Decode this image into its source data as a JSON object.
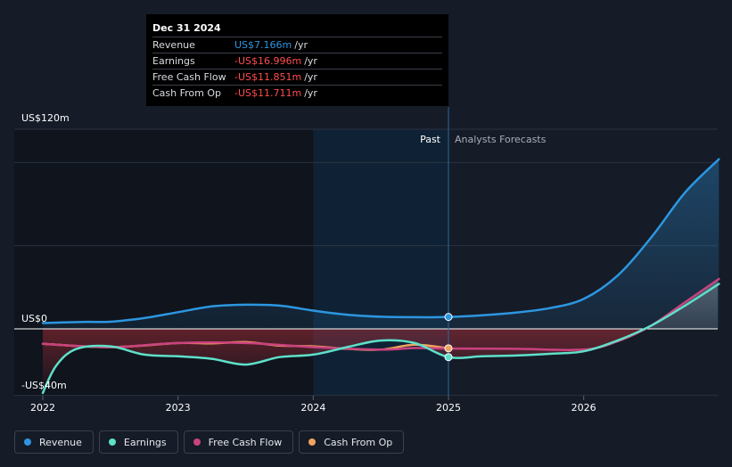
{
  "tooltip": {
    "date": "Dec 31 2024",
    "rows": [
      {
        "label": "Revenue",
        "value": "US$7.166m",
        "unit": "/yr",
        "color": "#2d96e0"
      },
      {
        "label": "Earnings",
        "value": "-US$16.996m",
        "unit": "/yr",
        "color": "#ff4d4d"
      },
      {
        "label": "Free Cash Flow",
        "value": "-US$11.851m",
        "unit": "/yr",
        "color": "#ff4d4d"
      },
      {
        "label": "Cash From Op",
        "value": "-US$11.711m",
        "unit": "/yr",
        "color": "#ff4d4d"
      }
    ]
  },
  "legend": [
    {
      "label": "Revenue",
      "color": "#2d96e0"
    },
    {
      "label": "Earnings",
      "color": "#5ee0c9"
    },
    {
      "label": "Free Cash Flow",
      "color": "#c9427f"
    },
    {
      "label": "Cash From Op",
      "color": "#f0a35e"
    }
  ],
  "chart_data": {
    "type": "line",
    "title": "",
    "y_top_label": "US$120m",
    "y_zero_label": "US$0",
    "y_bottom_label": "-US$40m",
    "past_label": "Past",
    "forecast_label": "Analysts Forecasts",
    "x_ticks": [
      "2022",
      "2023",
      "2024",
      "2025",
      "2026"
    ],
    "x_tick_values": [
      2022.0,
      2023.0,
      2024.0,
      2025.0,
      2026.0
    ],
    "x_range": [
      2021.8,
      2027.0
    ],
    "y_range": [
      -40,
      120
    ],
    "past_divider": 2025.0,
    "past_shade_start": 2024.0,
    "series": [
      {
        "name": "Revenue",
        "color": "#2d96e0",
        "x": [
          2022.0,
          2022.3,
          2022.5,
          2022.75,
          2023.0,
          2023.25,
          2023.5,
          2023.75,
          2024.0,
          2024.25,
          2024.5,
          2024.75,
          2025.0,
          2025.25,
          2025.5,
          2025.75,
          2026.0,
          2026.25,
          2026.5,
          2026.75,
          2027.0
        ],
        "y": [
          3.5,
          4.2,
          4.3,
          6.5,
          10.0,
          13.5,
          14.5,
          14.0,
          11.0,
          8.5,
          7.3,
          7.0,
          7.166,
          8.2,
          9.8,
          12.5,
          18.0,
          32.0,
          55.0,
          82.0,
          102.0
        ]
      },
      {
        "name": "Earnings",
        "color": "#5ee0c9",
        "x": [
          2022.0,
          2022.1,
          2022.25,
          2022.5,
          2022.75,
          2023.0,
          2023.25,
          2023.5,
          2023.75,
          2024.0,
          2024.25,
          2024.5,
          2024.75,
          2025.0,
          2025.25,
          2025.5,
          2025.75,
          2026.0,
          2026.25,
          2026.5,
          2026.75,
          2027.0
        ],
        "y": [
          -38.5,
          -22.0,
          -12.0,
          -10.5,
          -15.5,
          -16.5,
          -18.0,
          -21.5,
          -17.0,
          -15.5,
          -11.0,
          -7.0,
          -8.5,
          -16.996,
          -16.5,
          -16.0,
          -15.0,
          -13.5,
          -7.0,
          2.0,
          14.0,
          27.0
        ]
      },
      {
        "name": "Free Cash Flow",
        "color": "#c9427f",
        "x": [
          2022.0,
          2022.5,
          2023.0,
          2023.5,
          2024.0,
          2024.5,
          2024.75,
          2025.0,
          2025.5,
          2026.0,
          2026.25,
          2026.5,
          2026.75,
          2027.0
        ],
        "y": [
          -9.0,
          -11.0,
          -8.5,
          -8.5,
          -11.0,
          -12.5,
          -11.5,
          -11.851,
          -12.0,
          -12.5,
          -7.5,
          2.0,
          16.0,
          30.0
        ]
      },
      {
        "name": "Cash From Op",
        "color": "#f0a35e",
        "x": [
          2022.0,
          2022.5,
          2023.0,
          2023.25,
          2023.5,
          2023.75,
          2024.0,
          2024.25,
          2024.5,
          2024.75,
          2025.0
        ],
        "y": [
          -9.0,
          -11.0,
          -8.5,
          -8.7,
          -8.0,
          -10.0,
          -10.5,
          -12.0,
          -12.5,
          -9.5,
          -11.711
        ]
      }
    ]
  }
}
